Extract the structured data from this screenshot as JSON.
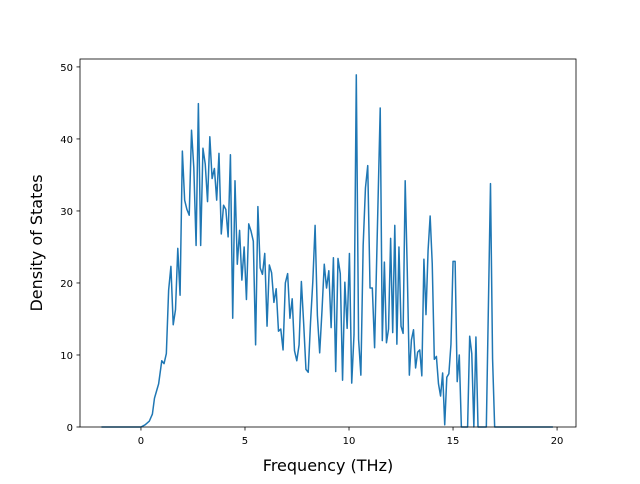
{
  "chart_data": {
    "type": "line",
    "xlabel": "Frequency (THz)",
    "ylabel": "Density of States",
    "color": "#1f77b4",
    "x": [
      -1.9,
      0,
      0.2,
      0.4,
      0.55,
      0.65,
      0.75,
      0.85,
      1.0,
      1.11,
      1.22,
      1.33,
      1.44,
      1.55,
      1.66,
      1.77,
      1.88,
      1.99,
      2.1,
      2.21,
      2.32,
      2.43,
      2.54,
      2.65,
      2.76,
      2.87,
      2.98,
      3.09,
      3.2,
      3.31,
      3.42,
      3.53,
      3.64,
      3.75,
      3.86,
      3.97,
      4.08,
      4.19,
      4.3,
      4.41,
      4.52,
      4.63,
      4.74,
      4.85,
      4.96,
      5.07,
      5.18,
      5.29,
      5.4,
      5.51,
      5.62,
      5.73,
      5.84,
      5.95,
      6.06,
      6.17,
      6.28,
      6.39,
      6.5,
      6.61,
      6.72,
      6.83,
      6.94,
      7.05,
      7.16,
      7.27,
      7.38,
      7.49,
      7.6,
      7.71,
      7.82,
      7.93,
      8.04,
      8.15,
      8.26,
      8.37,
      8.48,
      8.59,
      8.7,
      8.81,
      8.92,
      9.03,
      9.14,
      9.25,
      9.36,
      9.47,
      9.58,
      9.69,
      9.8,
      9.91,
      10.02,
      10.13,
      10.24,
      10.35,
      10.46,
      10.57,
      10.68,
      10.79,
      10.9,
      11.01,
      11.12,
      11.23,
      11.5,
      11.6,
      11.7,
      11.8,
      11.9,
      12.0,
      12.1,
      12.2,
      12.3,
      12.4,
      12.5,
      12.6,
      12.7,
      12.8,
      12.9,
      13.0,
      13.1,
      13.2,
      13.3,
      13.4,
      13.5,
      13.6,
      13.7,
      13.8,
      13.9,
      14.0,
      14.1,
      14.2,
      14.3,
      14.4,
      14.5,
      14.6,
      14.7,
      14.8,
      14.9,
      15.0,
      15.1,
      15.2,
      15.3,
      15.4,
      15.5,
      15.7,
      15.8,
      15.9,
      16.0,
      16.1,
      16.2,
      16.6,
      16.8,
      16.9,
      17.0,
      19.8
    ],
    "values": [
      0,
      0,
      0.3,
      0.8,
      1.8,
      4,
      5,
      6,
      9.2,
      8.8,
      10.2,
      19,
      22.3,
      14.2,
      16.3,
      24.8,
      18.3,
      38.3,
      31.5,
      30.2,
      29.4,
      41.2,
      36,
      25.2,
      44.9,
      25.2,
      38.7,
      36.5,
      31.3,
      40.3,
      34.5,
      35.9,
      31.5,
      38,
      26.8,
      30.8,
      30.2,
      26.4,
      37.8,
      15.1,
      34.2,
      22.6,
      27.3,
      20.4,
      25,
      17.7,
      28.2,
      27.2,
      25.8,
      11.4,
      30.6,
      22.1,
      21.2,
      24.1,
      14,
      22.5,
      21.4,
      17.3,
      19.2,
      13.3,
      13.6,
      10.7,
      20,
      21.3,
      15.1,
      17.8,
      10.6,
      9.2,
      11.4,
      20.2,
      14.4,
      8,
      7.6,
      14.5,
      20.2,
      28,
      15.5,
      10.3,
      16.1,
      22.6,
      19.3,
      21.7,
      13.8,
      23.5,
      7.7,
      23.4,
      21.3,
      6.5,
      20.1,
      13.7,
      24.1,
      6.1,
      12.8,
      48.9,
      12.2,
      7.2,
      25.2,
      33.2,
      36.3,
      19.3,
      19.3,
      11,
      44.3,
      12,
      22.9,
      11.7,
      13.6,
      26.2,
      13.1,
      28,
      11.5,
      25,
      14,
      13,
      34.2,
      21.7,
      7.2,
      12.1,
      13.5,
      8.2,
      10.4,
      10.7,
      7.1,
      23.3,
      15.6,
      24.5,
      29.3,
      22.7,
      9.4,
      9.8,
      6,
      4.3,
      7.5,
      0.3,
      6.9,
      7.4,
      11.5,
      23,
      23,
      6.3,
      10,
      0,
      0,
      0,
      12.6,
      10.2,
      0,
      12.5,
      0,
      0,
      33.8,
      9.5,
      0,
      0
    ],
    "xlim": [
      -2.93,
      20.91
    ],
    "ylim": [
      0,
      51.1
    ],
    "xticks": [
      0,
      5,
      10,
      15,
      20
    ],
    "yticks": [
      0,
      10,
      20,
      30,
      40,
      50
    ]
  }
}
